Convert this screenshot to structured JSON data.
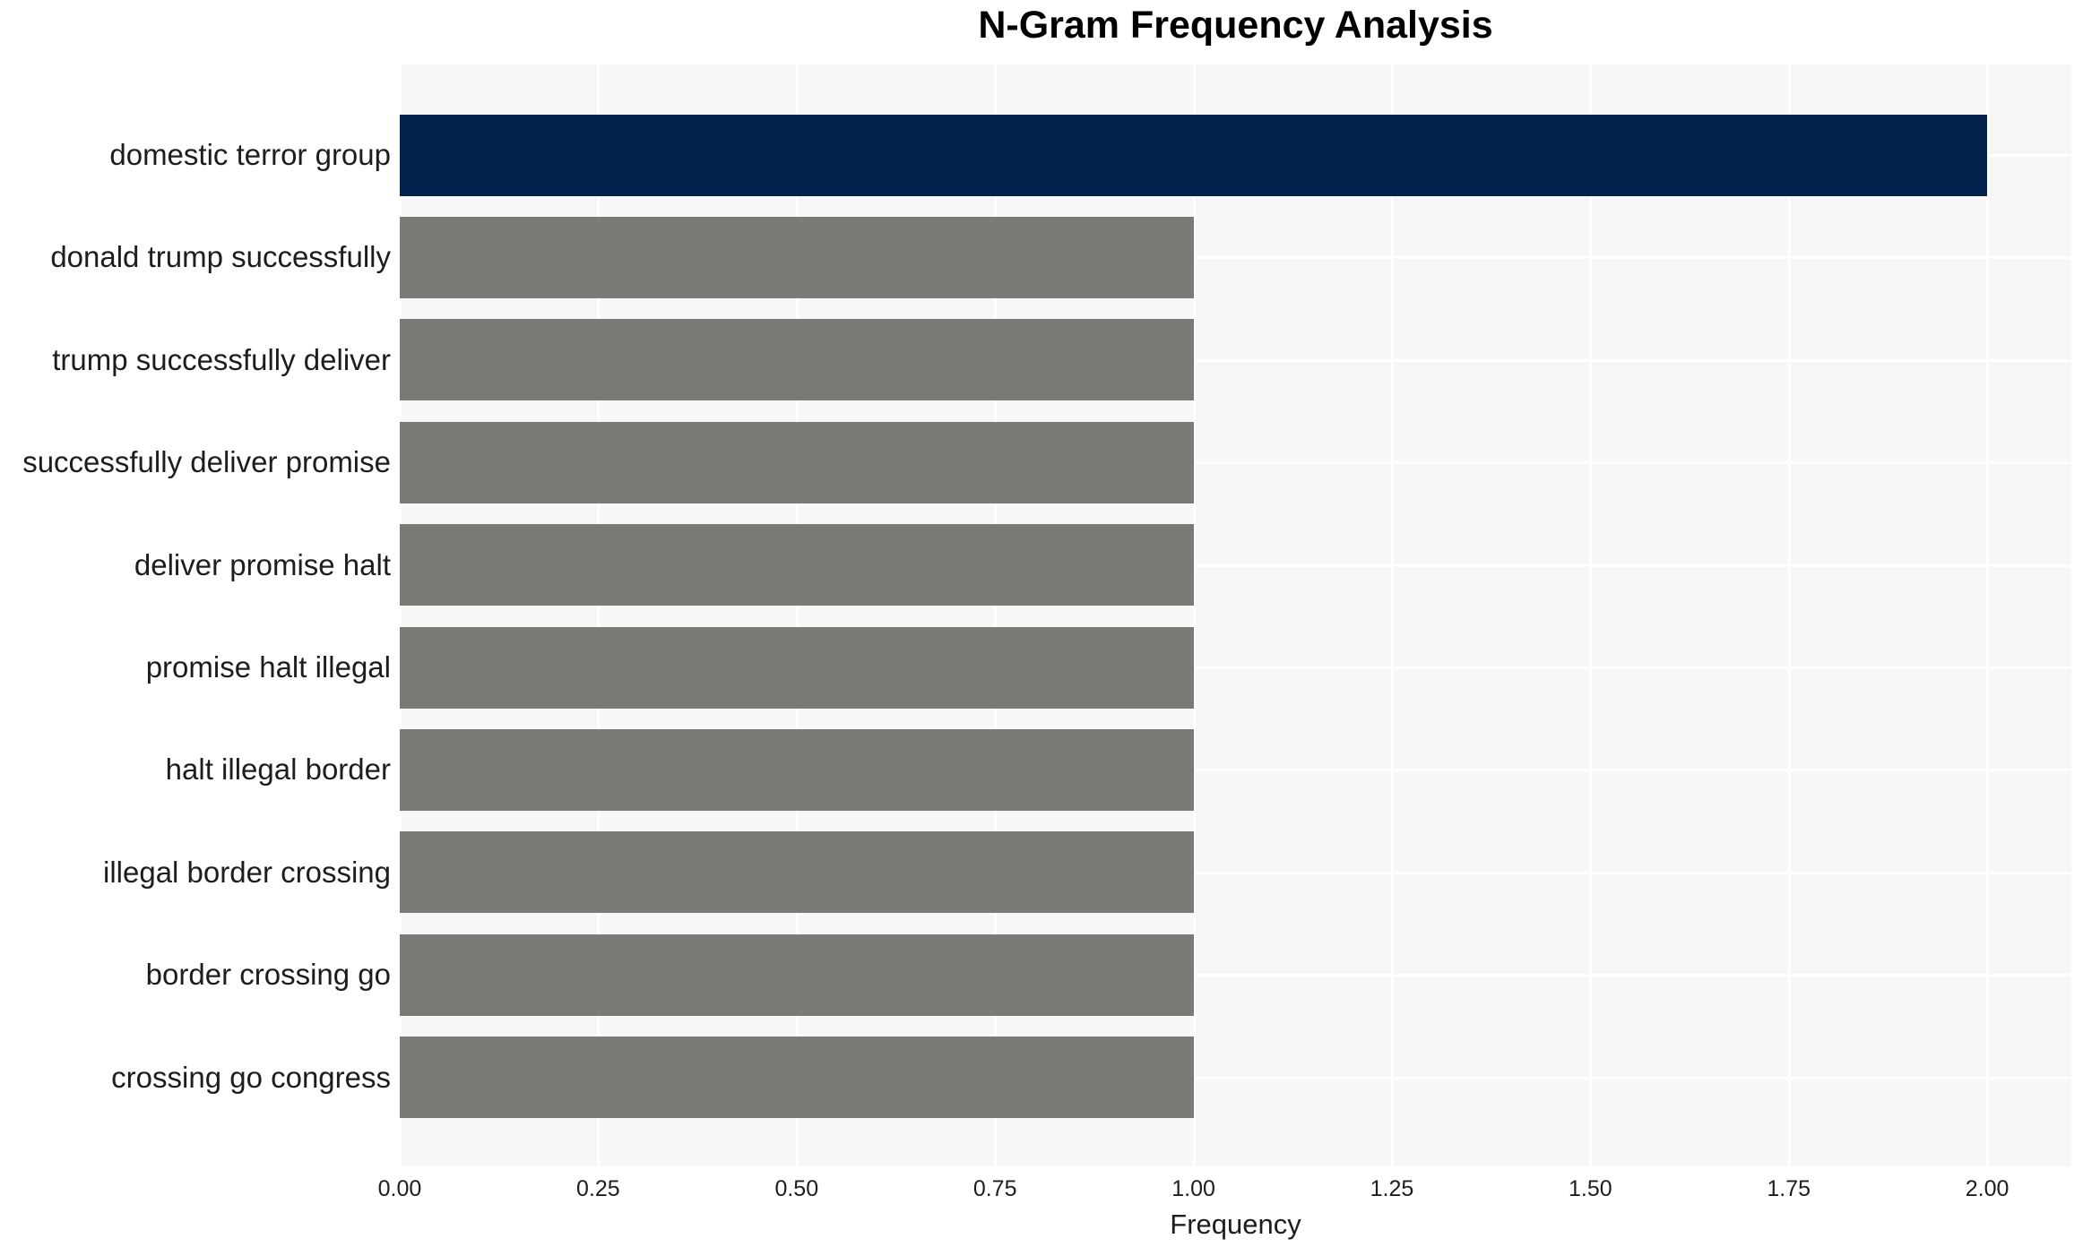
{
  "title": "N-Gram Frequency Analysis",
  "chart_data": {
    "type": "bar",
    "orientation": "horizontal",
    "title": "N-Gram Frequency Analysis",
    "xlabel": "Frequency",
    "ylabel": "",
    "categories": [
      "domestic terror group",
      "donald trump successfully",
      "trump successfully deliver",
      "successfully deliver promise",
      "deliver promise halt",
      "promise halt illegal",
      "halt illegal border",
      "illegal border crossing",
      "border crossing go",
      "crossing go congress"
    ],
    "values": [
      2,
      1,
      1,
      1,
      1,
      1,
      1,
      1,
      1,
      1
    ],
    "bar_colors": [
      "#03234e",
      "#7b7a76",
      "#7b7a76",
      "#7b7a76",
      "#7b7a76",
      "#7b7a76",
      "#7b7a76",
      "#7b7a76",
      "#7b7a76",
      "#7b7a76"
    ],
    "xlim": [
      0,
      2.106
    ],
    "xticks": [
      0,
      0.25,
      0.5,
      0.75,
      1,
      1.25,
      1.5,
      1.75,
      2
    ],
    "xtick_labels": [
      "0.00",
      "0.25",
      "0.50",
      "0.75",
      "1.00",
      "1.25",
      "1.50",
      "1.75",
      "2.00"
    ],
    "grid": true,
    "legend": false,
    "colors": {
      "highlight_bar": "#03234e",
      "default_bar": "#7b7a76",
      "plot_background": "#f7f7f7",
      "gridline": "#ffffff",
      "tick_text": "#1d1d1d",
      "title_text": "#000000"
    }
  }
}
